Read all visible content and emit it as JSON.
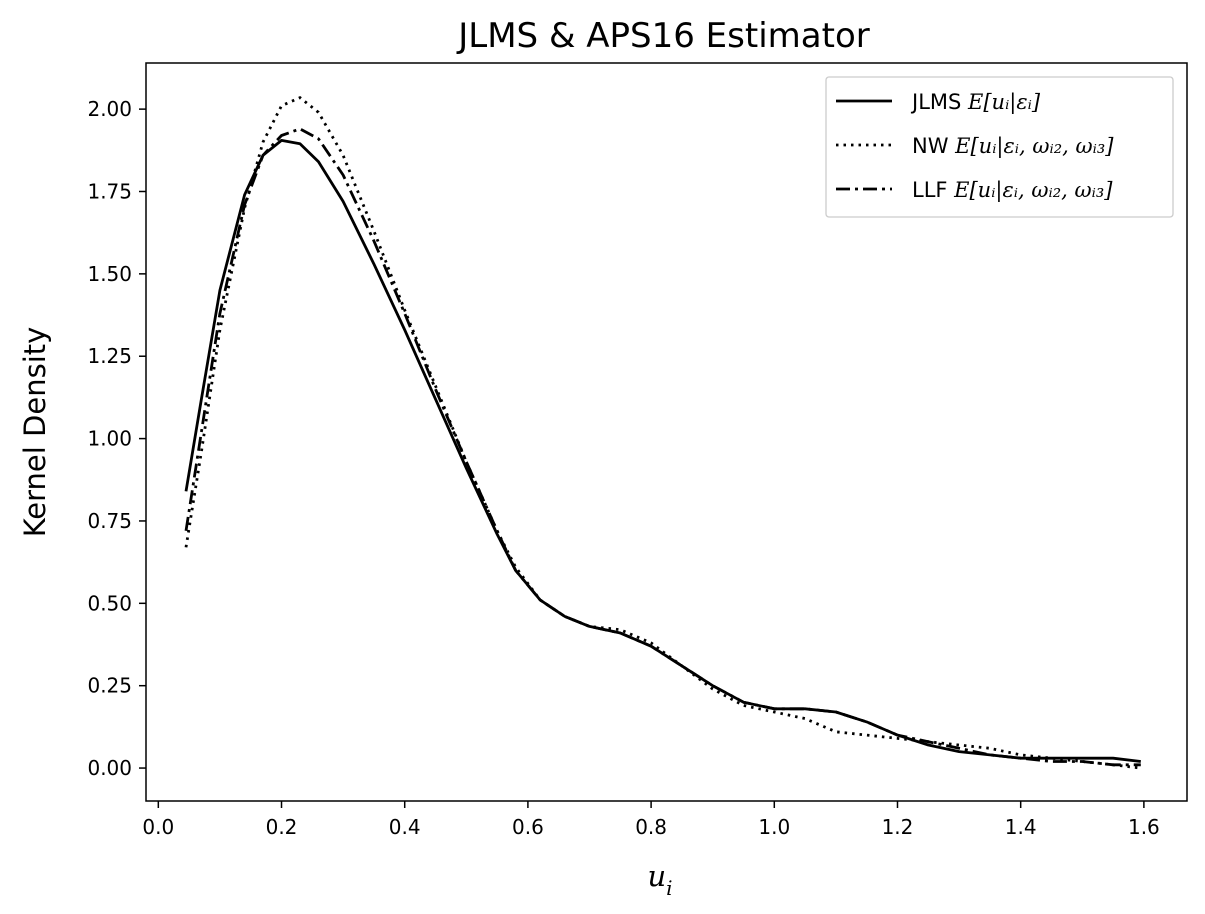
{
  "chart_data": {
    "type": "line",
    "title": "JLMS & APS16 Estimator",
    "xlabel": "u",
    "xlabel_subscript": "i",
    "ylabel": "Kernel Density",
    "xlim": [
      -0.02,
      1.67
    ],
    "ylim": [
      -0.1,
      2.14
    ],
    "xticks": [
      "0.0",
      "0.2",
      "0.4",
      "0.6",
      "0.8",
      "1.0",
      "1.2",
      "1.4",
      "1.6"
    ],
    "yticks": [
      "0.00",
      "0.25",
      "0.50",
      "0.75",
      "1.00",
      "1.25",
      "1.50",
      "1.75",
      "2.00"
    ],
    "grid": false,
    "legend_position": "top-right",
    "series": [
      {
        "name": "JLMS E[u_i|ε_i]",
        "legend_prefix": "JLMS ",
        "legend_math": "E[uᵢ|εᵢ]",
        "style": "solid",
        "color": "#000000",
        "points": [
          [
            0.045,
            0.84
          ],
          [
            0.07,
            1.12
          ],
          [
            0.1,
            1.45
          ],
          [
            0.14,
            1.74
          ],
          [
            0.17,
            1.86
          ],
          [
            0.2,
            1.905
          ],
          [
            0.23,
            1.895
          ],
          [
            0.26,
            1.84
          ],
          [
            0.3,
            1.72
          ],
          [
            0.35,
            1.53
          ],
          [
            0.4,
            1.33
          ],
          [
            0.45,
            1.12
          ],
          [
            0.5,
            0.91
          ],
          [
            0.55,
            0.71
          ],
          [
            0.58,
            0.6
          ],
          [
            0.62,
            0.51
          ],
          [
            0.66,
            0.46
          ],
          [
            0.7,
            0.43
          ],
          [
            0.75,
            0.41
          ],
          [
            0.8,
            0.37
          ],
          [
            0.85,
            0.31
          ],
          [
            0.9,
            0.25
          ],
          [
            0.95,
            0.2
          ],
          [
            1.0,
            0.18
          ],
          [
            1.05,
            0.18
          ],
          [
            1.1,
            0.17
          ],
          [
            1.15,
            0.14
          ],
          [
            1.2,
            0.1
          ],
          [
            1.25,
            0.07
          ],
          [
            1.3,
            0.05
          ],
          [
            1.35,
            0.04
          ],
          [
            1.4,
            0.03
          ],
          [
            1.45,
            0.03
          ],
          [
            1.5,
            0.03
          ],
          [
            1.55,
            0.03
          ],
          [
            1.595,
            0.02
          ]
        ]
      },
      {
        "name": "NW E[u_i|ε_i, ω_i2, ω_i3]",
        "legend_prefix": "NW ",
        "legend_math": "E[uᵢ|εᵢ, ωᵢ₂, ωᵢ₃]",
        "style": "dotted",
        "color": "#000000",
        "points": [
          [
            0.045,
            0.67
          ],
          [
            0.07,
            0.96
          ],
          [
            0.1,
            1.33
          ],
          [
            0.14,
            1.7
          ],
          [
            0.17,
            1.9
          ],
          [
            0.2,
            2.01
          ],
          [
            0.23,
            2.035
          ],
          [
            0.26,
            1.99
          ],
          [
            0.3,
            1.86
          ],
          [
            0.35,
            1.63
          ],
          [
            0.4,
            1.39
          ],
          [
            0.45,
            1.16
          ],
          [
            0.5,
            0.93
          ],
          [
            0.55,
            0.72
          ],
          [
            0.58,
            0.61
          ],
          [
            0.62,
            0.51
          ],
          [
            0.66,
            0.46
          ],
          [
            0.7,
            0.43
          ],
          [
            0.75,
            0.42
          ],
          [
            0.8,
            0.38
          ],
          [
            0.85,
            0.31
          ],
          [
            0.9,
            0.24
          ],
          [
            0.95,
            0.19
          ],
          [
            1.0,
            0.17
          ],
          [
            1.05,
            0.15
          ],
          [
            1.1,
            0.11
          ],
          [
            1.15,
            0.1
          ],
          [
            1.2,
            0.09
          ],
          [
            1.25,
            0.08
          ],
          [
            1.3,
            0.07
          ],
          [
            1.35,
            0.06
          ],
          [
            1.4,
            0.04
          ],
          [
            1.45,
            0.03
          ],
          [
            1.5,
            0.02
          ],
          [
            1.55,
            0.01
          ],
          [
            1.595,
            0.0
          ]
        ]
      },
      {
        "name": "LLF E[u_i|ε_i, ω_i2, ω_i3]",
        "legend_prefix": "LLF ",
        "legend_math": "E[uᵢ|εᵢ, ωᵢ₂, ωᵢ₃]",
        "style": "dashdot",
        "color": "#000000",
        "points": [
          [
            0.045,
            0.72
          ],
          [
            0.07,
            1.02
          ],
          [
            0.1,
            1.38
          ],
          [
            0.14,
            1.71
          ],
          [
            0.17,
            1.86
          ],
          [
            0.2,
            1.92
          ],
          [
            0.23,
            1.94
          ],
          [
            0.26,
            1.91
          ],
          [
            0.3,
            1.8
          ],
          [
            0.35,
            1.6
          ],
          [
            0.4,
            1.38
          ],
          [
            0.45,
            1.15
          ],
          [
            0.5,
            0.93
          ],
          [
            0.55,
            0.72
          ],
          [
            0.58,
            0.6
          ],
          [
            0.62,
            0.51
          ],
          [
            0.66,
            0.46
          ],
          [
            0.7,
            0.43
          ],
          [
            0.75,
            0.41
          ],
          [
            0.8,
            0.37
          ],
          [
            0.85,
            0.31
          ],
          [
            0.9,
            0.25
          ],
          [
            0.95,
            0.2
          ],
          [
            1.0,
            0.18
          ],
          [
            1.05,
            0.18
          ],
          [
            1.1,
            0.17
          ],
          [
            1.15,
            0.14
          ],
          [
            1.2,
            0.1
          ],
          [
            1.25,
            0.08
          ],
          [
            1.3,
            0.06
          ],
          [
            1.35,
            0.04
          ],
          [
            1.4,
            0.03
          ],
          [
            1.45,
            0.02
          ],
          [
            1.5,
            0.02
          ],
          [
            1.55,
            0.01
          ],
          [
            1.595,
            0.01
          ]
        ]
      }
    ]
  }
}
